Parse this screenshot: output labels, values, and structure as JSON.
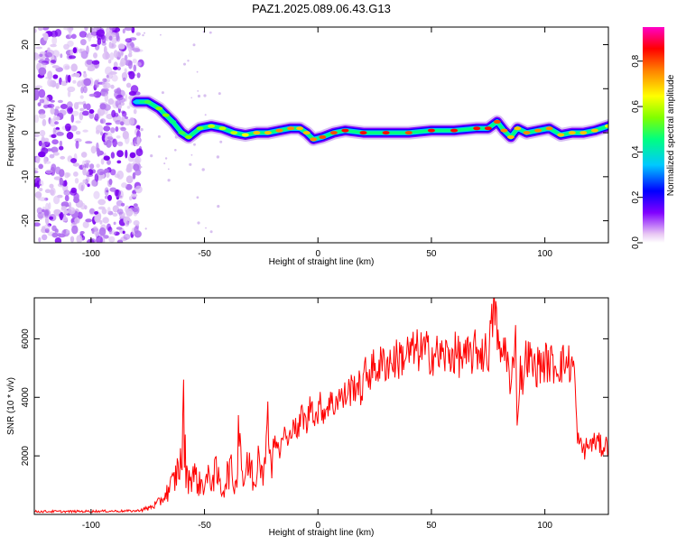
{
  "chart_data": [
    {
      "type": "heatmap",
      "title": "PAZ1.2025.089.06.43.G13",
      "xlabel": "Height of straight line (km)",
      "ylabel": "Frequency (Hz)",
      "xlim": [
        -125,
        128
      ],
      "ylim": [
        -25,
        24
      ],
      "xticks": [
        -100,
        -50,
        0,
        50,
        100
      ],
      "yticks": [
        -20,
        -10,
        0,
        10,
        20
      ],
      "colorbar": {
        "label": "Normalized spectral amplitude",
        "range": [
          0,
          0.95
        ],
        "ticks": [
          "0.0",
          "0.2",
          "0.4",
          "0.6",
          "0.8"
        ],
        "tick_values": [
          0.0,
          0.2,
          0.4,
          0.6,
          0.8
        ],
        "colormap": [
          "#ffffff",
          "#e9c8f4",
          "#8000ff",
          "#0000ff",
          "#00c8ff",
          "#00ff80",
          "#80ff00",
          "#ffff00",
          "#ff8000",
          "#ff0000",
          "#ff00c8"
        ]
      },
      "noise_region_x": [
        -125,
        -78
      ],
      "ridge": {
        "x": [
          -80,
          -75,
          -70,
          -67,
          -64,
          -60,
          -57,
          -52,
          -47,
          -42,
          -37,
          -32,
          -27,
          -22,
          -17,
          -12,
          -8,
          -5,
          -2,
          2,
          7,
          12,
          20,
          30,
          40,
          50,
          60,
          70,
          75,
          79,
          82,
          85,
          88,
          92,
          97,
          102,
          107,
          112,
          117,
          122,
          128
        ],
        "freq_hz": [
          7,
          7,
          5.5,
          4,
          2.5,
          0,
          -1,
          1,
          1.5,
          1,
          0,
          -0.5,
          0,
          0,
          0.5,
          1,
          1,
          0,
          -1.5,
          -1,
          0,
          0.5,
          0,
          0,
          0,
          0.5,
          0.5,
          1,
          1,
          2.5,
          0.5,
          -1,
          1,
          0,
          0.5,
          1,
          -0.5,
          0,
          0,
          0.5,
          1.5
        ],
        "amplitude": [
          0.35,
          0.5,
          0.55,
          0.55,
          0.45,
          0.5,
          0.55,
          0.55,
          0.6,
          0.6,
          0.6,
          0.65,
          0.7,
          0.7,
          0.75,
          0.75,
          0.7,
          0.7,
          0.75,
          0.8,
          0.8,
          0.85,
          0.85,
          0.85,
          0.8,
          0.85,
          0.85,
          0.85,
          0.85,
          0.8,
          0.75,
          0.7,
          0.7,
          0.75,
          0.75,
          0.75,
          0.7,
          0.7,
          0.7,
          0.7,
          0.65
        ]
      },
      "colors": {
        "noise": "#8000ff"
      }
    },
    {
      "type": "line",
      "title": "",
      "xlabel": "Height of straight line (km)",
      "ylabel": "SNR (10 * v/v)",
      "xlim": [
        -125,
        128
      ],
      "ylim": [
        0,
        7400
      ],
      "xticks": [
        -100,
        -50,
        0,
        50,
        100
      ],
      "yticks": [
        2000,
        4000,
        6000
      ],
      "series": [
        {
          "color": "#ff0000",
          "x": [
            -125,
            -110,
            -95,
            -80,
            -75,
            -70,
            -66,
            -63,
            -61,
            -60,
            -59.5,
            -58,
            -55,
            -52,
            -48,
            -45,
            -42,
            -39,
            -36,
            -35,
            -33,
            -30,
            -28,
            -26,
            -23,
            -22,
            -21,
            -19,
            -17,
            -15,
            -13,
            -11,
            -9,
            -7,
            -5,
            -3,
            -1,
            1,
            3,
            5,
            7,
            9,
            11,
            13,
            15,
            17,
            19,
            21,
            25,
            30,
            35,
            40,
            45,
            50,
            55,
            60,
            65,
            70,
            75,
            78,
            80,
            83,
            85,
            87,
            88,
            89,
            90,
            92,
            95,
            100,
            105,
            110,
            113,
            114,
            115,
            117,
            120,
            123,
            125,
            128
          ],
          "values": [
            100,
            100,
            110,
            120,
            200,
            400,
            800,
            1200,
            1800,
            1500,
            3800,
            1200,
            1400,
            1000,
            1200,
            1400,
            800,
            1600,
            900,
            3500,
            1100,
            1800,
            900,
            2500,
            1300,
            5000,
            1700,
            2700,
            2000,
            2900,
            2300,
            3300,
            2700,
            3500,
            3000,
            3900,
            3300,
            3700,
            3500,
            3900,
            3700,
            4100,
            3900,
            4200,
            4300,
            4500,
            4200,
            4800,
            5000,
            5200,
            5300,
            5500,
            5600,
            5500,
            5400,
            5500,
            5300,
            5600,
            5500,
            7200,
            5300,
            5800,
            4000,
            6500,
            2700,
            5200,
            4500,
            5500,
            5000,
            5200,
            5100,
            5200,
            5000,
            3000,
            2400,
            2200,
            2400,
            2500,
            2300,
            2400
          ]
        }
      ]
    }
  ]
}
